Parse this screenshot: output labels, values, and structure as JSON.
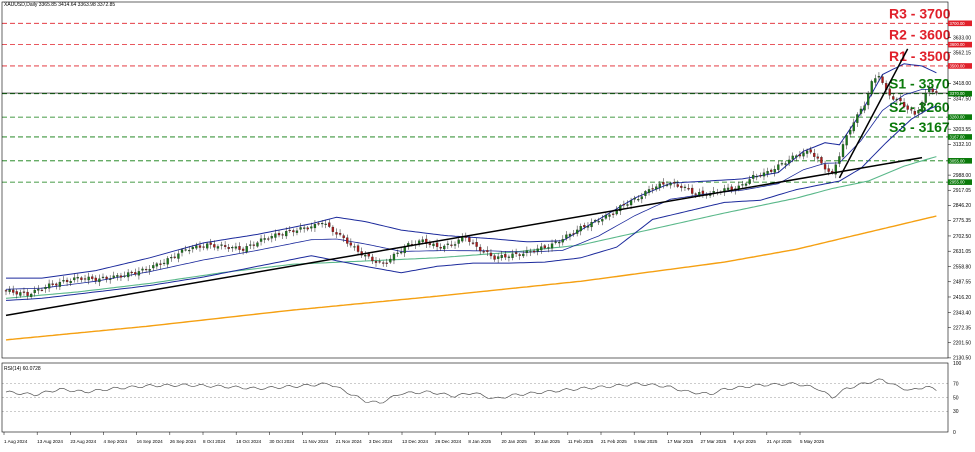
{
  "header": {
    "symbol_text": "XAUUSD,Daily  3365.85 3414.64 3363.98 3372.85"
  },
  "rsi_panel": {
    "label": "RSI(14) 60.0728"
  },
  "colors": {
    "bull": "#1a7a1a",
    "bear": "#b01818",
    "resistance": "#e0202a",
    "support": "#0a7a0a",
    "bollinger": "#1c2a9c",
    "ma_green": "#5ab88a",
    "ma_orange": "#f5a012",
    "trendline": "#000000",
    "rsi": "#555555"
  },
  "chart_data": {
    "type": "candlestick",
    "title": "XAUUSD,Daily  3365.85 3414.64 3363.98 3372.85",
    "ylim": [
      2130,
      3800
    ],
    "y_ticks": [
      "3700.00",
      "3633.00",
      "3600.00",
      "3562.15",
      "3500.00",
      "3418.00",
      "3370.00",
      "3347.50",
      "3260.00",
      "3203.55",
      "3167.00",
      "3132.10",
      "3055.00",
      "2988.00",
      "2955.00",
      "2917.05",
      "2846.20",
      "2775.35",
      "2702.50",
      "2631.05",
      "2558.80",
      "2487.55",
      "2416.20",
      "2343.40",
      "2272.35",
      "2201.50",
      "2130.50"
    ],
    "x_ticks": [
      "1 Aug 2024",
      "13 Aug 2024",
      "23 Aug 2024",
      "4 Sep 2024",
      "16 Sep 2024",
      "26 Sep 2024",
      "8 Oct 2024",
      "18 Oct 2024",
      "30 Oct 2024",
      "11 Nov 2024",
      "21 Nov 2024",
      "3 Dec 2024",
      "13 Dec 2024",
      "26 Dec 2024",
      "8 Jan 2025",
      "20 Jan 2025",
      "30 Jan 2025",
      "11 Feb 2025",
      "21 Feb 2025",
      "5 Mar 2025",
      "17 Mar 2025",
      "27 Mar 2025",
      "8 Apr 2025",
      "21 Apr 2025",
      "5 May 2025"
    ],
    "levels": [
      {
        "name": "R3",
        "label": "R3 - 3700",
        "value": 3700,
        "box": "3700.00",
        "kind": "resistance"
      },
      {
        "name": "R2",
        "label": "R2 - 3600",
        "value": 3600,
        "box": "3600.00",
        "kind": "resistance"
      },
      {
        "name": "R1",
        "label": "R1 - 3500",
        "value": 3500,
        "box": "3500.00",
        "kind": "resistance"
      },
      {
        "name": "S1",
        "label": "S1 - 3370",
        "value": 3370,
        "box": "3370.00",
        "kind": "support"
      },
      {
        "name": "S2",
        "label": "S2 - 3260",
        "value": 3260,
        "box": "3260.00",
        "kind": "support"
      },
      {
        "name": "S3",
        "label": "S3 - 3167",
        "value": 3167,
        "box": "3167.00",
        "kind": "support"
      },
      {
        "name": "",
        "label": "",
        "value": 3055,
        "box": "3055.00",
        "kind": "support"
      },
      {
        "name": "",
        "label": "",
        "value": 2955,
        "box": "2955.00",
        "kind": "support"
      }
    ],
    "series_keyframes": {
      "close": [
        [
          0,
          2445
        ],
        [
          6,
          2428
        ],
        [
          12,
          2470
        ],
        [
          20,
          2505
        ],
        [
          26,
          2500
        ],
        [
          32,
          2515
        ],
        [
          38,
          2540
        ],
        [
          44,
          2580
        ],
        [
          50,
          2640
        ],
        [
          56,
          2660
        ],
        [
          62,
          2650
        ],
        [
          66,
          2640
        ],
        [
          72,
          2690
        ],
        [
          78,
          2720
        ],
        [
          82,
          2735
        ],
        [
          86,
          2750
        ],
        [
          88,
          2770
        ],
        [
          90,
          2740
        ],
        [
          94,
          2690
        ],
        [
          98,
          2630
        ],
        [
          102,
          2590
        ],
        [
          105,
          2570
        ],
        [
          108,
          2610
        ],
        [
          112,
          2660
        ],
        [
          116,
          2680
        ],
        [
          120,
          2650
        ],
        [
          124,
          2660
        ],
        [
          128,
          2700
        ],
        [
          130,
          2660
        ],
        [
          134,
          2620
        ],
        [
          136,
          2600
        ],
        [
          140,
          2610
        ],
        [
          144,
          2620
        ],
        [
          148,
          2640
        ],
        [
          152,
          2660
        ],
        [
          156,
          2700
        ],
        [
          160,
          2740
        ],
        [
          164,
          2770
        ],
        [
          168,
          2800
        ],
        [
          172,
          2850
        ],
        [
          176,
          2880
        ],
        [
          180,
          2930
        ],
        [
          184,
          2950
        ],
        [
          188,
          2935
        ],
        [
          192,
          2900
        ],
        [
          196,
          2900
        ],
        [
          200,
          2920
        ],
        [
          204,
          2930
        ],
        [
          208,
          2980
        ],
        [
          212,
          3000
        ],
        [
          216,
          3040
        ],
        [
          220,
          3080
        ],
        [
          224,
          3100
        ],
        [
          227,
          3040
        ],
        [
          230,
          2990
        ],
        [
          233,
          3130
        ],
        [
          236,
          3240
        ],
        [
          239,
          3320
        ],
        [
          241,
          3420
        ],
        [
          243,
          3460
        ],
        [
          245,
          3380
        ],
        [
          247,
          3350
        ],
        [
          249,
          3330
        ],
        [
          251,
          3300
        ],
        [
          253,
          3270
        ],
        [
          255,
          3330
        ],
        [
          257,
          3400
        ],
        [
          259,
          3372
        ]
      ],
      "bb_upper": [
        [
          0,
          2505
        ],
        [
          10,
          2505
        ],
        [
          25,
          2540
        ],
        [
          40,
          2600
        ],
        [
          55,
          2670
        ],
        [
          70,
          2710
        ],
        [
          85,
          2760
        ],
        [
          92,
          2790
        ],
        [
          100,
          2770
        ],
        [
          110,
          2730
        ],
        [
          122,
          2705
        ],
        [
          135,
          2690
        ],
        [
          145,
          2675
        ],
        [
          155,
          2680
        ],
        [
          165,
          2780
        ],
        [
          175,
          2880
        ],
        [
          185,
          2950
        ],
        [
          195,
          2960
        ],
        [
          205,
          2970
        ],
        [
          215,
          3000
        ],
        [
          222,
          3100
        ],
        [
          228,
          3140
        ],
        [
          232,
          3130
        ],
        [
          238,
          3280
        ],
        [
          244,
          3460
        ],
        [
          250,
          3510
        ],
        [
          255,
          3500
        ],
        [
          260,
          3460
        ]
      ],
      "bb_lower": [
        [
          0,
          2400
        ],
        [
          10,
          2410
        ],
        [
          25,
          2440
        ],
        [
          40,
          2470
        ],
        [
          55,
          2510
        ],
        [
          70,
          2560
        ],
        [
          85,
          2610
        ],
        [
          100,
          2560
        ],
        [
          110,
          2530
        ],
        [
          120,
          2560
        ],
        [
          130,
          2575
        ],
        [
          140,
          2575
        ],
        [
          150,
          2580
        ],
        [
          160,
          2600
        ],
        [
          170,
          2650
        ],
        [
          180,
          2780
        ],
        [
          190,
          2820
        ],
        [
          200,
          2860
        ],
        [
          210,
          2870
        ],
        [
          220,
          2920
        ],
        [
          226,
          2940
        ],
        [
          232,
          2960
        ],
        [
          238,
          3020
        ],
        [
          245,
          3140
        ],
        [
          252,
          3250
        ],
        [
          256,
          3290
        ],
        [
          260,
          3320
        ]
      ],
      "sma_50": [
        [
          0,
          2410
        ],
        [
          20,
          2440
        ],
        [
          40,
          2480
        ],
        [
          60,
          2530
        ],
        [
          80,
          2570
        ],
        [
          100,
          2585
        ],
        [
          120,
          2600
        ],
        [
          140,
          2625
        ],
        [
          160,
          2660
        ],
        [
          180,
          2735
        ],
        [
          200,
          2810
        ],
        [
          220,
          2880
        ],
        [
          230,
          2925
        ],
        [
          240,
          2960
        ],
        [
          250,
          3030
        ],
        [
          260,
          3080
        ]
      ],
      "sma_200": [
        [
          0,
          2215
        ],
        [
          40,
          2280
        ],
        [
          80,
          2355
        ],
        [
          120,
          2420
        ],
        [
          160,
          2490
        ],
        [
          200,
          2580
        ],
        [
          220,
          2640
        ],
        [
          240,
          2720
        ],
        [
          260,
          2800
        ]
      ],
      "rsi": [
        [
          0,
          58
        ],
        [
          8,
          54
        ],
        [
          15,
          62
        ],
        [
          22,
          58
        ],
        [
          30,
          63
        ],
        [
          40,
          67
        ],
        [
          50,
          68
        ],
        [
          60,
          66
        ],
        [
          70,
          63
        ],
        [
          80,
          66
        ],
        [
          90,
          70
        ],
        [
          96,
          55
        ],
        [
          100,
          45
        ],
        [
          104,
          42
        ],
        [
          110,
          56
        ],
        [
          118,
          58
        ],
        [
          125,
          52
        ],
        [
          130,
          57
        ],
        [
          136,
          48
        ],
        [
          142,
          54
        ],
        [
          150,
          58
        ],
        [
          160,
          63
        ],
        [
          168,
          66
        ],
        [
          176,
          70
        ],
        [
          184,
          66
        ],
        [
          190,
          58
        ],
        [
          196,
          55
        ],
        [
          200,
          62
        ],
        [
          210,
          68
        ],
        [
          220,
          70
        ],
        [
          226,
          63
        ],
        [
          230,
          50
        ],
        [
          234,
          63
        ],
        [
          240,
          72
        ],
        [
          244,
          76
        ],
        [
          248,
          66
        ],
        [
          252,
          60
        ],
        [
          256,
          66
        ],
        [
          259,
          61
        ]
      ]
    },
    "trendlines": [
      {
        "x1_index": 0,
        "y1": 2330,
        "x2_index": 255,
        "y2": 3070
      },
      {
        "x1_index": 232,
        "y1": 2975,
        "x2_index": 251,
        "y2": 3580
      }
    ],
    "rsi_levels": [
      70,
      50,
      30
    ],
    "rsi_ticks": [
      "100",
      "70",
      "50",
      "30",
      "0"
    ]
  }
}
